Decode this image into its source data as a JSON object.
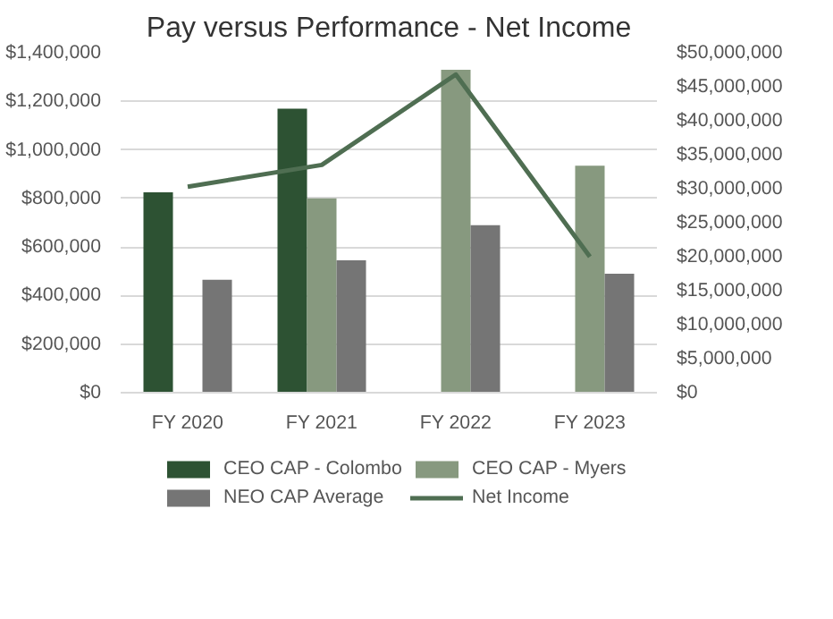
{
  "chart_data": {
    "type": "bar",
    "title": "Pay versus Performance - Net Income",
    "categories": [
      "FY 2020",
      "FY 2021",
      "FY 2022",
      "FY 2023"
    ],
    "series": [
      {
        "name": "CEO CAP - Colombo",
        "color": "#2d5233",
        "values": [
          825000,
          1170000,
          null,
          null
        ]
      },
      {
        "name": "CEO CAP - Myers",
        "color": "#87997f",
        "values": [
          null,
          800000,
          1330000,
          935000
        ]
      },
      {
        "name": "NEO CAP Average",
        "color": "#757575",
        "values": [
          465000,
          545000,
          690000,
          490000
        ]
      },
      {
        "name": "Net Income",
        "color": "#4f6e52",
        "type": "line",
        "axis": "y2",
        "values": [
          30300000,
          33500000,
          46800000,
          20000000
        ]
      }
    ],
    "ylim": [
      0,
      1400000
    ],
    "yticks": [
      {
        "value": 0,
        "label": "$0"
      },
      {
        "value": 200000,
        "label": "$200,000"
      },
      {
        "value": 400000,
        "label": "$400,000"
      },
      {
        "value": 600000,
        "label": "$600,000"
      },
      {
        "value": 800000,
        "label": "$800,000"
      },
      {
        "value": 1000000,
        "label": "$1,000,000"
      },
      {
        "value": 1200000,
        "label": "$1,200,000"
      },
      {
        "value": 1400000,
        "label": "$1,400,000"
      }
    ],
    "y2lim": [
      0,
      50000000
    ],
    "y2ticks": [
      {
        "value": 0,
        "label": "$0"
      },
      {
        "value": 5000000,
        "label": "$5,000,000"
      },
      {
        "value": 10000000,
        "label": "$10,000,000"
      },
      {
        "value": 15000000,
        "label": "$15,000,000"
      },
      {
        "value": 20000000,
        "label": "$20,000,000"
      },
      {
        "value": 25000000,
        "label": "$25,000,000"
      },
      {
        "value": 30000000,
        "label": "$30,000,000"
      },
      {
        "value": 35000000,
        "label": "$35,000,000"
      },
      {
        "value": 40000000,
        "label": "$40,000,000"
      },
      {
        "value": 45000000,
        "label": "$45,000,000"
      },
      {
        "value": 50000000,
        "label": "$50,000,000"
      }
    ],
    "grid": "y",
    "legend": "bottom"
  }
}
